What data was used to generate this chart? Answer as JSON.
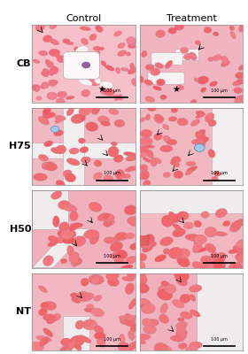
{
  "title": "",
  "col_headers": [
    "Control",
    "Treatment"
  ],
  "row_labels": [
    "CB",
    "H75",
    "H50",
    "NT"
  ],
  "figure_bg": "#ffffff",
  "scale_bar_text": "100 μm"
}
